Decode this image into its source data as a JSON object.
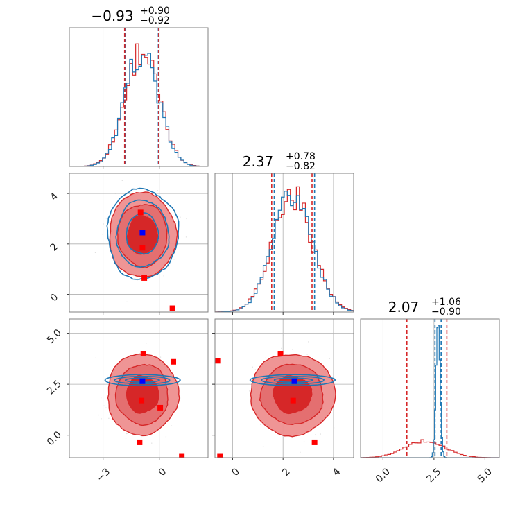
{
  "chart_data": {
    "type": "corner",
    "parameters": [
      "",
      "",
      ""
    ],
    "colors": {
      "series_a": "#d62728",
      "series_a_fill_inner": "#d62728",
      "series_a_fill_outer": "#ee8f8f",
      "series_b": "#1f77b4",
      "marker_a": "#ff0000",
      "marker_b": "#0000ff",
      "grid": "#b0b0b0",
      "frame": "#808080"
    },
    "titles": [
      {
        "value": "−0.93",
        "plus": "+0.90",
        "minus": "−0.92"
      },
      {
        "value": "2.37",
        "plus": "+0.78",
        "minus": "−0.82"
      },
      {
        "value": "2.07",
        "plus": "+1.06",
        "minus": "−0.90"
      }
    ],
    "ranges": [
      [
        -4.8,
        2.6
      ],
      [
        -0.7,
        4.8
      ],
      [
        -1.1,
        5.7
      ]
    ],
    "ticks": [
      {
        "values": [
          -3,
          0
        ],
        "labels": [
          "−3",
          "0"
        ]
      },
      {
        "values": [
          0,
          2,
          4
        ],
        "labels": [
          "0",
          "2",
          "4"
        ]
      },
      {
        "values": [
          0,
          2.5,
          5
        ],
        "labels": [
          "0.0",
          "2.5",
          "5.0"
        ]
      }
    ],
    "marginals": [
      {
        "series_a": {
          "median": -0.93,
          "lo": -1.85,
          "hi": -0.03,
          "sigma": 0.9
        },
        "series_b": {
          "median": -0.93,
          "lo": -1.8,
          "hi": -0.05,
          "sigma": 0.88
        }
      },
      {
        "series_a": {
          "median": 2.37,
          "lo": 1.55,
          "hi": 3.15,
          "sigma": 0.8
        },
        "series_b": {
          "median": 2.4,
          "lo": 1.65,
          "hi": 3.25,
          "sigma": 0.78
        }
      },
      {
        "series_a": {
          "median": 2.07,
          "lo": 1.17,
          "hi": 3.13,
          "sigma": 0.98
        },
        "series_b": {
          "median": 2.7,
          "lo": 2.55,
          "hi": 2.85,
          "sigma": 0.1
        }
      }
    ],
    "joint": [
      {
        "row": 1,
        "col": 0,
        "series_a": {
          "center": [
            -0.9,
            2.35
          ],
          "sigma": [
            0.85,
            0.8
          ]
        },
        "series_b": {
          "center": [
            -0.9,
            2.4
          ],
          "sigma": [
            0.9,
            0.85
          ]
        },
        "markers_a": [
          [
            -1.0,
            3.25
          ],
          [
            -0.9,
            1.85
          ],
          [
            -0.8,
            0.65
          ],
          [
            0.7,
            -0.55
          ]
        ],
        "markers_b": [
          [
            -0.9,
            2.45
          ]
        ]
      },
      {
        "row": 2,
        "col": 0,
        "series_a": {
          "center": [
            -0.9,
            2.0
          ],
          "sigma": [
            0.9,
            0.95
          ]
        },
        "series_b": {
          "center": [
            -0.9,
            2.7
          ],
          "sigma": [
            0.95,
            0.1
          ]
        },
        "markers_a": [
          [
            -0.85,
            4.0
          ],
          [
            0.75,
            3.6
          ],
          [
            0.05,
            1.35
          ],
          [
            -0.95,
            1.7
          ],
          [
            -1.05,
            -0.35
          ],
          [
            1.2,
            -1.05
          ]
        ],
        "markers_b": [
          [
            -0.9,
            2.65
          ]
        ]
      },
      {
        "row": 2,
        "col": 1,
        "series_a": {
          "center": [
            2.37,
            2.0
          ],
          "sigma": [
            0.8,
            0.95
          ]
        },
        "series_b": {
          "center": [
            2.4,
            2.7
          ],
          "sigma": [
            0.8,
            0.1
          ]
        },
        "markers_a": [
          [
            1.9,
            4.0
          ],
          [
            -0.6,
            3.65
          ],
          [
            2.4,
            1.7
          ],
          [
            3.25,
            -0.35
          ],
          [
            -0.5,
            -1.05
          ]
        ],
        "markers_b": [
          [
            2.45,
            2.65
          ]
        ]
      }
    ]
  }
}
